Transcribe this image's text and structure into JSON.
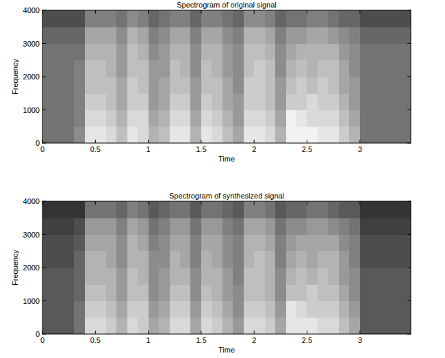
{
  "chart_data": [
    {
      "type": "heatmap",
      "title": "Spectrogram of original signal",
      "x_label": "Time",
      "y_label": "Frequency",
      "xlim": [
        0,
        3.48
      ],
      "ylim": [
        0,
        4000
      ],
      "xticks": [
        0,
        0.5,
        1,
        1.5,
        2,
        2.5,
        3
      ],
      "yticks": [
        0,
        1000,
        2000,
        3000,
        4000
      ],
      "zlim": [
        0,
        1
      ],
      "x_bins": [
        0,
        0.1,
        0.2,
        0.3,
        0.4,
        0.5,
        0.6,
        0.7,
        0.8,
        0.9,
        1,
        1.1,
        1.2,
        1.3,
        1.4,
        1.5,
        1.6,
        1.7,
        1.8,
        1.9,
        2,
        2.1,
        2.2,
        2.3,
        2.4,
        2.5,
        2.6,
        2.7,
        2.8,
        2.9,
        3,
        3.1,
        3.2,
        3.3,
        3.4,
        3.5
      ],
      "y_bins": [
        0,
        500,
        1000,
        1500,
        2000,
        2500,
        3000,
        3500,
        4000
      ],
      "cells": [
        [
          0.45,
          0.45,
          0.45,
          0.55,
          0.9,
          0.9,
          0.85,
          0.75,
          0.9,
          0.85,
          0.7,
          0.75,
          0.9,
          0.9,
          0.7,
          0.9,
          0.85,
          0.75,
          0.65,
          0.9,
          0.9,
          0.85,
          0.7,
          0.95,
          0.95,
          0.95,
          0.9,
          0.9,
          0.8,
          0.7,
          0.45,
          0.45,
          0.45,
          0.45,
          0.45
        ],
        [
          0.45,
          0.45,
          0.45,
          0.5,
          0.85,
          0.85,
          0.8,
          0.7,
          0.85,
          0.85,
          0.65,
          0.7,
          0.85,
          0.85,
          0.65,
          0.85,
          0.8,
          0.7,
          0.6,
          0.85,
          0.85,
          0.8,
          0.65,
          0.95,
          0.9,
          0.85,
          0.85,
          0.85,
          0.75,
          0.65,
          0.45,
          0.45,
          0.45,
          0.45,
          0.45
        ],
        [
          0.45,
          0.45,
          0.45,
          0.5,
          0.8,
          0.8,
          0.75,
          0.65,
          0.8,
          0.8,
          0.6,
          0.65,
          0.8,
          0.8,
          0.6,
          0.8,
          0.75,
          0.65,
          0.6,
          0.8,
          0.8,
          0.75,
          0.6,
          0.8,
          0.8,
          0.85,
          0.8,
          0.8,
          0.7,
          0.6,
          0.45,
          0.45,
          0.45,
          0.45,
          0.45
        ],
        [
          0.45,
          0.45,
          0.45,
          0.5,
          0.75,
          0.75,
          0.75,
          0.65,
          0.8,
          0.75,
          0.6,
          0.65,
          0.75,
          0.75,
          0.6,
          0.75,
          0.75,
          0.65,
          0.55,
          0.8,
          0.8,
          0.75,
          0.6,
          0.75,
          0.8,
          0.75,
          0.8,
          0.75,
          0.65,
          0.6,
          0.45,
          0.45,
          0.45,
          0.45,
          0.45
        ],
        [
          0.45,
          0.45,
          0.45,
          0.5,
          0.75,
          0.75,
          0.7,
          0.6,
          0.75,
          0.75,
          0.6,
          0.6,
          0.75,
          0.7,
          0.55,
          0.75,
          0.7,
          0.6,
          0.55,
          0.75,
          0.8,
          0.75,
          0.55,
          0.7,
          0.75,
          0.7,
          0.75,
          0.75,
          0.65,
          0.55,
          0.45,
          0.45,
          0.45,
          0.45,
          0.45
        ],
        [
          0.45,
          0.45,
          0.45,
          0.45,
          0.7,
          0.7,
          0.7,
          0.6,
          0.75,
          0.7,
          0.55,
          0.6,
          0.7,
          0.7,
          0.55,
          0.7,
          0.7,
          0.6,
          0.55,
          0.75,
          0.75,
          0.7,
          0.55,
          0.65,
          0.7,
          0.7,
          0.7,
          0.7,
          0.6,
          0.55,
          0.45,
          0.45,
          0.45,
          0.45,
          0.45
        ],
        [
          0.4,
          0.4,
          0.4,
          0.4,
          0.65,
          0.65,
          0.65,
          0.55,
          0.7,
          0.65,
          0.5,
          0.55,
          0.65,
          0.65,
          0.5,
          0.65,
          0.65,
          0.55,
          0.5,
          0.7,
          0.7,
          0.65,
          0.5,
          0.6,
          0.6,
          0.65,
          0.65,
          0.6,
          0.55,
          0.5,
          0.4,
          0.4,
          0.4,
          0.4,
          0.4
        ],
        [
          0.3,
          0.3,
          0.3,
          0.3,
          0.5,
          0.5,
          0.5,
          0.45,
          0.55,
          0.5,
          0.4,
          0.45,
          0.5,
          0.5,
          0.4,
          0.5,
          0.5,
          0.45,
          0.4,
          0.55,
          0.55,
          0.5,
          0.4,
          0.45,
          0.45,
          0.5,
          0.5,
          0.45,
          0.4,
          0.4,
          0.3,
          0.3,
          0.3,
          0.3,
          0.3
        ]
      ]
    },
    {
      "type": "heatmap",
      "title": "Spectrogram of synthesized signal",
      "x_label": "Time",
      "y_label": "Frequency",
      "xlim": [
        0,
        3.48
      ],
      "ylim": [
        0,
        4000
      ],
      "xticks": [
        0,
        0.5,
        1,
        1.5,
        2,
        2.5,
        3
      ],
      "yticks": [
        0,
        1000,
        2000,
        3000,
        4000
      ],
      "zlim": [
        0,
        1
      ],
      "x_bins": [
        0,
        0.1,
        0.2,
        0.3,
        0.4,
        0.5,
        0.6,
        0.7,
        0.8,
        0.9,
        1,
        1.1,
        1.2,
        1.3,
        1.4,
        1.5,
        1.6,
        1.7,
        1.8,
        1.9,
        2,
        2.1,
        2.2,
        2.3,
        2.4,
        2.5,
        2.6,
        2.7,
        2.8,
        2.9,
        3,
        3.1,
        3.2,
        3.3,
        3.4,
        3.5
      ],
      "y_bins": [
        0,
        500,
        1000,
        1500,
        2000,
        2500,
        3000,
        3500,
        4000
      ],
      "cells": [
        [
          0.35,
          0.35,
          0.35,
          0.45,
          0.85,
          0.85,
          0.8,
          0.7,
          0.85,
          0.8,
          0.65,
          0.7,
          0.85,
          0.85,
          0.65,
          0.85,
          0.8,
          0.7,
          0.6,
          0.85,
          0.85,
          0.8,
          0.65,
          0.9,
          0.9,
          0.9,
          0.85,
          0.85,
          0.75,
          0.65,
          0.35,
          0.35,
          0.35,
          0.35,
          0.35
        ],
        [
          0.35,
          0.35,
          0.35,
          0.45,
          0.8,
          0.8,
          0.75,
          0.65,
          0.8,
          0.8,
          0.6,
          0.65,
          0.8,
          0.8,
          0.6,
          0.8,
          0.75,
          0.65,
          0.55,
          0.8,
          0.8,
          0.75,
          0.6,
          0.9,
          0.85,
          0.8,
          0.8,
          0.8,
          0.7,
          0.6,
          0.35,
          0.35,
          0.35,
          0.35,
          0.35
        ],
        [
          0.35,
          0.35,
          0.35,
          0.4,
          0.75,
          0.75,
          0.7,
          0.6,
          0.75,
          0.75,
          0.55,
          0.6,
          0.75,
          0.75,
          0.55,
          0.75,
          0.7,
          0.6,
          0.55,
          0.75,
          0.75,
          0.7,
          0.55,
          0.75,
          0.75,
          0.8,
          0.75,
          0.75,
          0.65,
          0.55,
          0.35,
          0.35,
          0.35,
          0.35,
          0.35
        ],
        [
          0.35,
          0.35,
          0.35,
          0.4,
          0.7,
          0.7,
          0.7,
          0.6,
          0.75,
          0.7,
          0.55,
          0.6,
          0.7,
          0.7,
          0.55,
          0.7,
          0.7,
          0.6,
          0.5,
          0.75,
          0.75,
          0.7,
          0.55,
          0.7,
          0.75,
          0.7,
          0.75,
          0.7,
          0.6,
          0.55,
          0.35,
          0.35,
          0.35,
          0.35,
          0.35
        ],
        [
          0.3,
          0.3,
          0.3,
          0.4,
          0.7,
          0.7,
          0.65,
          0.55,
          0.7,
          0.7,
          0.55,
          0.55,
          0.7,
          0.65,
          0.5,
          0.7,
          0.65,
          0.55,
          0.5,
          0.7,
          0.75,
          0.7,
          0.5,
          0.65,
          0.7,
          0.65,
          0.7,
          0.7,
          0.6,
          0.5,
          0.3,
          0.3,
          0.3,
          0.3,
          0.3
        ],
        [
          0.3,
          0.3,
          0.3,
          0.35,
          0.65,
          0.65,
          0.65,
          0.55,
          0.7,
          0.65,
          0.5,
          0.55,
          0.65,
          0.65,
          0.5,
          0.65,
          0.65,
          0.55,
          0.5,
          0.7,
          0.7,
          0.65,
          0.5,
          0.6,
          0.65,
          0.65,
          0.65,
          0.65,
          0.55,
          0.5,
          0.3,
          0.3,
          0.3,
          0.3,
          0.3
        ],
        [
          0.25,
          0.25,
          0.25,
          0.3,
          0.6,
          0.6,
          0.6,
          0.5,
          0.65,
          0.6,
          0.45,
          0.5,
          0.6,
          0.6,
          0.45,
          0.6,
          0.6,
          0.5,
          0.45,
          0.65,
          0.65,
          0.6,
          0.45,
          0.55,
          0.55,
          0.6,
          0.6,
          0.55,
          0.5,
          0.45,
          0.25,
          0.25,
          0.25,
          0.25,
          0.25
        ],
        [
          0.2,
          0.2,
          0.2,
          0.2,
          0.45,
          0.45,
          0.45,
          0.4,
          0.5,
          0.45,
          0.35,
          0.4,
          0.45,
          0.45,
          0.35,
          0.45,
          0.45,
          0.4,
          0.35,
          0.5,
          0.5,
          0.45,
          0.35,
          0.4,
          0.4,
          0.45,
          0.45,
          0.4,
          0.35,
          0.35,
          0.2,
          0.2,
          0.2,
          0.2,
          0.2
        ]
      ]
    }
  ]
}
